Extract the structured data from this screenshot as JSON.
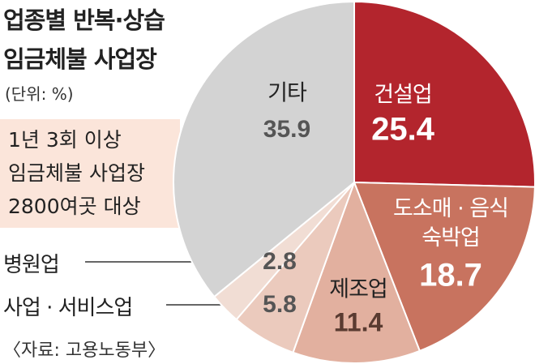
{
  "chart_data": {
    "type": "pie",
    "title": [
      "업종별 반복·상습",
      "임금체불 사업장"
    ],
    "subtitle": "(단위: %)",
    "note": [
      "1년 3회 이상",
      "임금체불 사업장",
      "2800여곳 대상"
    ],
    "source": "〈자료: 고용노동부〉",
    "categories": [
      "건설업",
      "도소매 · 음식숙박업",
      "제조업",
      "사업 · 서비스업",
      "병원업",
      "기타"
    ],
    "values": [
      25.4,
      18.7,
      11.4,
      5.8,
      2.8,
      35.9
    ],
    "colors": [
      "#b3252d",
      "#c8735f",
      "#e2b09f",
      "#ebcabd",
      "#f1ddd4",
      "#d3d3d3"
    ]
  }
}
